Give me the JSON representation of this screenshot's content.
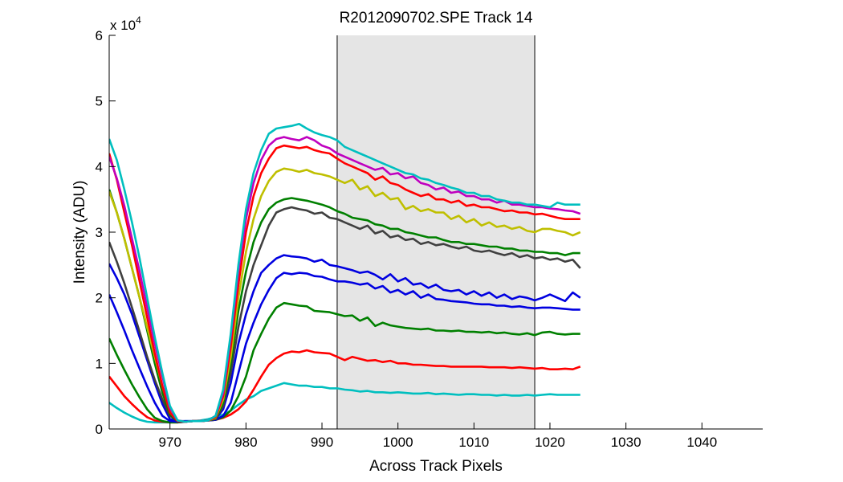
{
  "chart_data": {
    "type": "line",
    "title": "R2012090702.SPE   Track 14",
    "xlabel": "Across Track Pixels",
    "ylabel": "Intensity (ADU)",
    "y_multiplier_base": "x 10",
    "y_multiplier_exp": "4",
    "xlim": [
      962,
      1048
    ],
    "ylim": [
      0,
      6
    ],
    "xticks": [
      "970",
      "980",
      "990",
      "1000",
      "1010",
      "1020",
      "1030",
      "1040"
    ],
    "yticks": [
      "0",
      "1",
      "2",
      "3",
      "4",
      "5",
      "6"
    ],
    "shaded_region": {
      "x_start": 992,
      "x_end": 1018,
      "color": "#e5e5e5"
    },
    "grid": false,
    "x": [
      962,
      963,
      964,
      965,
      966,
      967,
      968,
      969,
      970,
      971,
      972,
      973,
      974,
      975,
      976,
      977,
      978,
      979,
      980,
      981,
      982,
      983,
      984,
      985,
      986,
      987,
      988,
      989,
      990,
      991,
      992,
      993,
      994,
      995,
      996,
      997,
      998,
      999,
      1000,
      1001,
      1002,
      1003,
      1004,
      1005,
      1006,
      1007,
      1008,
      1009,
      1010,
      1011,
      1012,
      1013,
      1014,
      1015,
      1016,
      1017,
      1018,
      1019,
      1020,
      1021,
      1022,
      1023,
      1024
    ],
    "series": [
      {
        "color": "#00bfbf",
        "values": [
          0.4,
          0.32,
          0.25,
          0.19,
          0.14,
          0.11,
          0.1,
          0.1,
          0.1,
          0.11,
          0.12,
          0.12,
          0.13,
          0.15,
          0.18,
          0.22,
          0.28,
          0.37,
          0.45,
          0.5,
          0.58,
          0.62,
          0.66,
          0.7,
          0.68,
          0.66,
          0.66,
          0.64,
          0.64,
          0.62,
          0.62,
          0.6,
          0.59,
          0.57,
          0.58,
          0.56,
          0.56,
          0.55,
          0.56,
          0.55,
          0.54,
          0.54,
          0.55,
          0.53,
          0.54,
          0.53,
          0.52,
          0.53,
          0.53,
          0.52,
          0.52,
          0.51,
          0.52,
          0.51,
          0.51,
          0.52,
          0.51,
          0.52,
          0.53,
          0.52,
          0.52,
          0.52,
          0.52
        ]
      },
      {
        "color": "#ff0000",
        "values": [
          0.8,
          0.65,
          0.5,
          0.38,
          0.27,
          0.18,
          0.13,
          0.11,
          0.1,
          0.1,
          0.11,
          0.12,
          0.12,
          0.13,
          0.14,
          0.17,
          0.22,
          0.3,
          0.42,
          0.6,
          0.8,
          0.98,
          1.08,
          1.15,
          1.18,
          1.17,
          1.2,
          1.17,
          1.16,
          1.15,
          1.1,
          1.05,
          1.1,
          1.07,
          1.04,
          1.05,
          1.02,
          1.04,
          1.0,
          1.0,
          0.98,
          0.98,
          0.97,
          0.96,
          0.96,
          0.95,
          0.95,
          0.95,
          0.95,
          0.95,
          0.94,
          0.94,
          0.94,
          0.93,
          0.94,
          0.93,
          0.92,
          0.93,
          0.91,
          0.91,
          0.92,
          0.91,
          0.95
        ]
      },
      {
        "color": "#008000",
        "values": [
          1.38,
          1.13,
          0.9,
          0.68,
          0.48,
          0.3,
          0.17,
          0.12,
          0.1,
          0.1,
          0.11,
          0.12,
          0.12,
          0.13,
          0.14,
          0.18,
          0.28,
          0.5,
          0.8,
          1.2,
          1.45,
          1.68,
          1.85,
          1.92,
          1.9,
          1.88,
          1.87,
          1.8,
          1.79,
          1.78,
          1.75,
          1.72,
          1.73,
          1.65,
          1.7,
          1.57,
          1.62,
          1.58,
          1.56,
          1.54,
          1.53,
          1.52,
          1.53,
          1.5,
          1.5,
          1.49,
          1.5,
          1.48,
          1.48,
          1.47,
          1.48,
          1.46,
          1.47,
          1.45,
          1.44,
          1.46,
          1.43,
          1.47,
          1.48,
          1.45,
          1.44,
          1.45,
          1.45
        ]
      },
      {
        "color": "#0000e0",
        "values": [
          2.05,
          1.78,
          1.5,
          1.2,
          0.92,
          0.65,
          0.4,
          0.2,
          0.12,
          0.11,
          0.11,
          0.12,
          0.12,
          0.13,
          0.14,
          0.2,
          0.4,
          0.85,
          1.3,
          1.62,
          1.9,
          2.12,
          2.3,
          2.38,
          2.36,
          2.38,
          2.37,
          2.33,
          2.32,
          2.28,
          2.25,
          2.25,
          2.23,
          2.2,
          2.22,
          2.14,
          2.18,
          2.08,
          2.12,
          2.05,
          2.1,
          2.0,
          2.05,
          1.98,
          1.97,
          1.95,
          1.94,
          1.93,
          1.91,
          1.9,
          1.9,
          1.88,
          1.88,
          1.86,
          1.87,
          1.85,
          1.84,
          1.85,
          1.85,
          1.84,
          1.83,
          1.82,
          1.82
        ]
      },
      {
        "color": "#0000e0",
        "values": [
          2.52,
          2.3,
          2.05,
          1.75,
          1.4,
          1.05,
          0.7,
          0.38,
          0.15,
          0.12,
          0.12,
          0.12,
          0.12,
          0.13,
          0.15,
          0.3,
          0.7,
          1.3,
          1.75,
          2.1,
          2.38,
          2.5,
          2.6,
          2.65,
          2.63,
          2.62,
          2.6,
          2.55,
          2.58,
          2.5,
          2.48,
          2.45,
          2.42,
          2.38,
          2.4,
          2.35,
          2.28,
          2.36,
          2.25,
          2.3,
          2.2,
          2.22,
          2.15,
          2.2,
          2.12,
          2.1,
          2.12,
          2.05,
          2.1,
          2.03,
          2.08,
          2.0,
          2.05,
          1.98,
          2.02,
          2.0,
          1.96,
          2.0,
          2.05,
          2.0,
          1.95,
          2.08,
          2.0
        ]
      },
      {
        "color": "#404040",
        "values": [
          2.85,
          2.55,
          2.22,
          1.85,
          1.48,
          1.1,
          0.75,
          0.45,
          0.2,
          0.12,
          0.11,
          0.12,
          0.12,
          0.13,
          0.15,
          0.35,
          0.85,
          1.55,
          2.1,
          2.5,
          2.8,
          3.1,
          3.3,
          3.35,
          3.38,
          3.35,
          3.33,
          3.28,
          3.3,
          3.22,
          3.2,
          3.15,
          3.1,
          3.05,
          3.1,
          2.98,
          3.02,
          2.92,
          2.95,
          2.88,
          2.9,
          2.82,
          2.85,
          2.8,
          2.82,
          2.78,
          2.75,
          2.78,
          2.72,
          2.7,
          2.72,
          2.68,
          2.65,
          2.68,
          2.62,
          2.65,
          2.6,
          2.62,
          2.58,
          2.6,
          2.55,
          2.58,
          2.45
        ]
      },
      {
        "color": "#008000",
        "values": [
          3.65,
          3.3,
          2.9,
          2.45,
          2.0,
          1.5,
          1.0,
          0.55,
          0.22,
          0.12,
          0.11,
          0.12,
          0.12,
          0.13,
          0.16,
          0.4,
          1.0,
          1.8,
          2.4,
          2.85,
          3.15,
          3.35,
          3.45,
          3.5,
          3.52,
          3.5,
          3.48,
          3.45,
          3.42,
          3.38,
          3.32,
          3.28,
          3.22,
          3.2,
          3.18,
          3.12,
          3.1,
          3.05,
          3.05,
          3.0,
          2.98,
          2.95,
          2.92,
          2.92,
          2.88,
          2.85,
          2.85,
          2.82,
          2.82,
          2.8,
          2.78,
          2.78,
          2.75,
          2.75,
          2.72,
          2.72,
          2.7,
          2.7,
          2.68,
          2.68,
          2.65,
          2.68,
          2.68
        ]
      },
      {
        "color": "#bfbf00",
        "values": [
          3.62,
          3.3,
          2.9,
          2.45,
          2.0,
          1.55,
          1.1,
          0.65,
          0.28,
          0.13,
          0.11,
          0.12,
          0.12,
          0.13,
          0.17,
          0.45,
          1.1,
          2.0,
          2.7,
          3.2,
          3.55,
          3.78,
          3.92,
          3.97,
          3.95,
          3.92,
          3.95,
          3.9,
          3.88,
          3.85,
          3.8,
          3.75,
          3.8,
          3.65,
          3.7,
          3.55,
          3.6,
          3.5,
          3.52,
          3.35,
          3.4,
          3.32,
          3.35,
          3.3,
          3.3,
          3.2,
          3.25,
          3.15,
          3.2,
          3.1,
          3.15,
          3.08,
          3.1,
          3.05,
          3.08,
          3.02,
          3.0,
          3.05,
          3.05,
          3.02,
          3.0,
          2.95,
          3.0
        ]
      },
      {
        "color": "#ff0000",
        "values": [
          4.2,
          3.8,
          3.3,
          2.8,
          2.25,
          1.7,
          1.15,
          0.65,
          0.25,
          0.12,
          0.11,
          0.12,
          0.12,
          0.13,
          0.18,
          0.5,
          1.25,
          2.2,
          3.0,
          3.55,
          3.9,
          4.12,
          4.28,
          4.32,
          4.3,
          4.28,
          4.3,
          4.25,
          4.22,
          4.2,
          4.12,
          4.05,
          4.0,
          3.95,
          3.9,
          3.8,
          3.85,
          3.75,
          3.72,
          3.65,
          3.6,
          3.55,
          3.58,
          3.5,
          3.5,
          3.45,
          3.48,
          3.4,
          3.42,
          3.38,
          3.38,
          3.35,
          3.32,
          3.33,
          3.3,
          3.3,
          3.27,
          3.28,
          3.25,
          3.22,
          3.2,
          3.2,
          3.2
        ]
      },
      {
        "color": "#bf00bf",
        "values": [
          4.15,
          3.82,
          3.4,
          2.9,
          2.4,
          1.85,
          1.3,
          0.8,
          0.32,
          0.13,
          0.11,
          0.12,
          0.12,
          0.13,
          0.2,
          0.55,
          1.4,
          2.4,
          3.2,
          3.75,
          4.1,
          4.32,
          4.42,
          4.45,
          4.42,
          4.4,
          4.45,
          4.4,
          4.32,
          4.28,
          4.2,
          4.15,
          4.1,
          4.05,
          4.0,
          3.95,
          3.98,
          3.88,
          3.9,
          3.82,
          3.85,
          3.75,
          3.72,
          3.65,
          3.68,
          3.6,
          3.62,
          3.55,
          3.55,
          3.5,
          3.5,
          3.45,
          3.48,
          3.42,
          3.42,
          3.4,
          3.38,
          3.38,
          3.36,
          3.35,
          3.33,
          3.32,
          3.28
        ]
      },
      {
        "color": "#00bfbf",
        "values": [
          4.42,
          4.1,
          3.65,
          3.15,
          2.6,
          2.0,
          1.4,
          0.85,
          0.35,
          0.13,
          0.11,
          0.12,
          0.12,
          0.13,
          0.2,
          0.6,
          1.45,
          2.5,
          3.35,
          3.9,
          4.25,
          4.5,
          4.58,
          4.6,
          4.62,
          4.65,
          4.58,
          4.52,
          4.48,
          4.45,
          4.4,
          4.3,
          4.25,
          4.2,
          4.15,
          4.1,
          4.05,
          4.0,
          3.95,
          3.9,
          3.88,
          3.82,
          3.8,
          3.75,
          3.72,
          3.68,
          3.65,
          3.6,
          3.6,
          3.55,
          3.55,
          3.5,
          3.48,
          3.45,
          3.45,
          3.42,
          3.42,
          3.4,
          3.38,
          3.45,
          3.42,
          3.42,
          3.42
        ]
      }
    ]
  }
}
